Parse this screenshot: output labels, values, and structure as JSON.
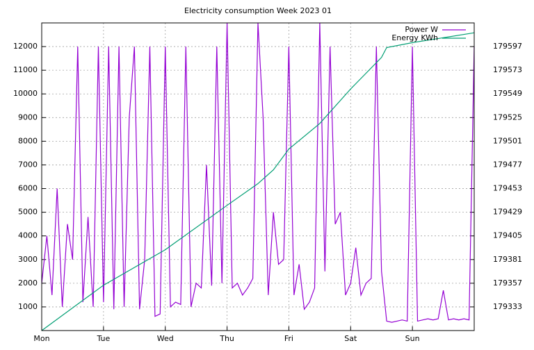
{
  "chart_data": {
    "type": "line",
    "title": "Electricity consumption Week 2023 01",
    "xlim": [
      0,
      168
    ],
    "xticks": [
      {
        "value": 0,
        "label": "Mon"
      },
      {
        "value": 24,
        "label": "Tue"
      },
      {
        "value": 48,
        "label": "Wed"
      },
      {
        "value": 72,
        "label": "Thu"
      },
      {
        "value": 96,
        "label": "Fri"
      },
      {
        "value": 120,
        "label": "Sat"
      },
      {
        "value": 144,
        "label": "Sun"
      }
    ],
    "ylim": [
      0,
      13000
    ],
    "yticks": [
      1000,
      2000,
      3000,
      4000,
      5000,
      6000,
      7000,
      8000,
      9000,
      10000,
      11000,
      12000
    ],
    "y2lim": [
      179309,
      179621
    ],
    "y2ticks": [
      179333,
      179357,
      179381,
      179405,
      179429,
      179453,
      179477,
      179501,
      179525,
      179549,
      179573,
      179597
    ],
    "grid": true,
    "legend": "top-right",
    "series": [
      {
        "name": "Power W",
        "color": "#9400d3",
        "x": [
          0,
          2,
          4,
          6,
          8,
          10,
          12,
          14,
          16,
          18,
          20,
          22,
          24,
          26,
          28,
          30,
          32,
          34,
          36,
          38,
          40,
          42,
          44,
          46,
          48,
          50,
          52,
          54,
          56,
          58,
          60,
          62,
          64,
          66,
          68,
          70,
          72,
          74,
          76,
          78,
          80,
          82,
          84,
          86,
          88,
          90,
          92,
          94,
          96,
          98,
          100,
          102,
          104,
          106,
          108,
          110,
          112,
          114,
          116,
          118,
          120,
          122,
          124,
          126,
          128,
          130,
          132,
          134,
          136,
          138,
          140,
          142,
          144,
          146,
          148,
          150,
          152,
          154,
          156,
          158,
          160,
          162,
          164,
          166,
          168
        ],
        "values": [
          2000,
          4000,
          1500,
          6000,
          1000,
          4500,
          3000,
          12000,
          1200,
          4800,
          1000,
          12000,
          1200,
          12000,
          900,
          12000,
          1000,
          9000,
          12000,
          900,
          3000,
          12000,
          600,
          700,
          12000,
          1000,
          1200,
          1100,
          12000,
          1000,
          2000,
          1800,
          7000,
          1900,
          12000,
          2000,
          13000,
          1800,
          2000,
          1500,
          1800,
          2200,
          13000,
          9000,
          1500,
          5000,
          2800,
          3000,
          12000,
          1500,
          2800,
          900,
          1200,
          1800,
          13000,
          2500,
          12000,
          4500,
          5000,
          1500,
          2000,
          3500,
          1500,
          2000,
          2200,
          12000,
          2500,
          400,
          350,
          400,
          450,
          400,
          12000,
          400,
          450,
          500,
          450,
          500,
          1700,
          450,
          500,
          450,
          500,
          450,
          12000
        ]
      },
      {
        "name": "Energy KWh",
        "color": "#009e73",
        "axis": "y2",
        "x": [
          0,
          24,
          48,
          72,
          84,
          90,
          96,
          108,
          120,
          132,
          134,
          144,
          168
        ],
        "values": [
          179309,
          179355,
          179391,
          179436,
          179458,
          179472,
          179493,
          179519,
          179554,
          179586,
          179596,
          179601,
          179611
        ]
      }
    ]
  }
}
